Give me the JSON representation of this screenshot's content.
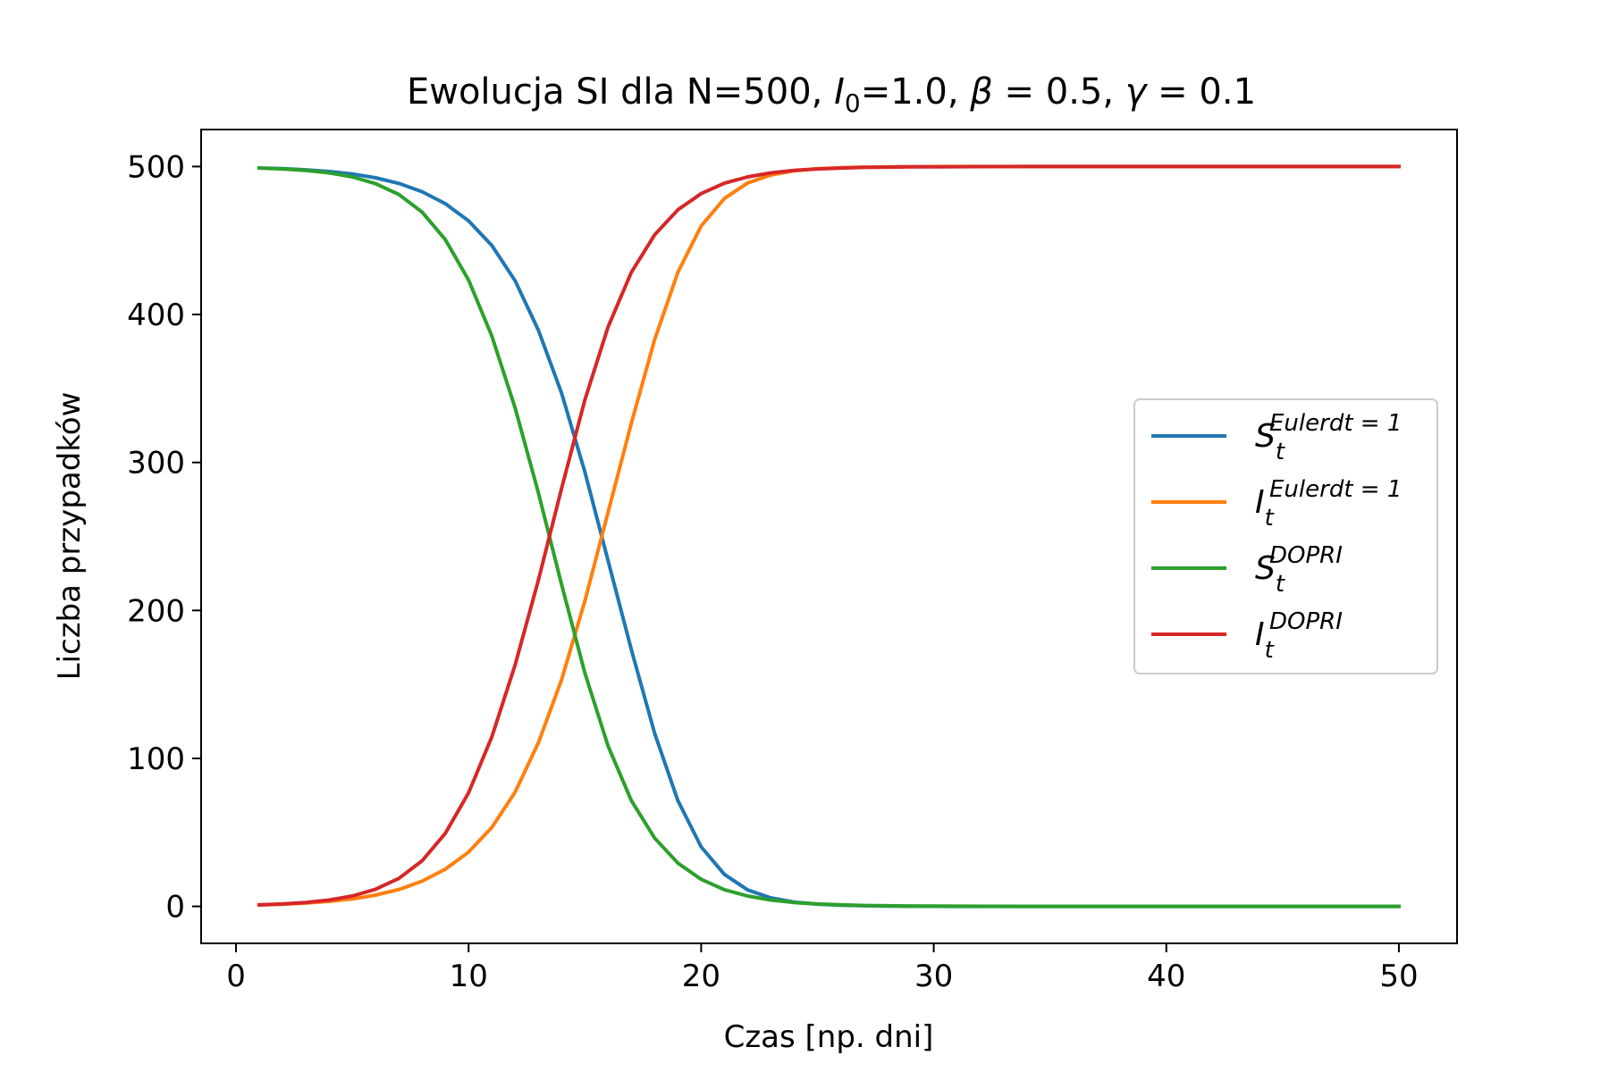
{
  "chart_data": {
    "type": "line",
    "title": {
      "prefix": "Ewolucja SI dla N=500, ",
      "i0_var": "I",
      "i0_sub": "0",
      "i0_value": "=1.0, ",
      "beta_sym": "β",
      "beta_value": " = 0.5, ",
      "gamma_sym": "γ",
      "gamma_value": " = 0.1"
    },
    "xlabel": "Czas [np. dni]",
    "ylabel": "Liczba przypadków",
    "xlim": [
      -1.5,
      52.5
    ],
    "ylim": [
      -25,
      525
    ],
    "xticks": [
      0,
      10,
      20,
      30,
      40,
      50
    ],
    "yticks": [
      0,
      100,
      200,
      300,
      400,
      500
    ],
    "grid": false,
    "legend_position": "center-right",
    "series": [
      {
        "name": "S_t^{Eulerdt=1}",
        "label_main": "S",
        "label_sub": "t",
        "label_sup": "Eulerdt = 1",
        "color": "#1f77b4",
        "x": [
          1,
          2,
          3,
          4,
          5,
          6,
          7,
          8,
          9,
          10,
          11,
          12,
          13,
          14,
          15,
          16,
          17,
          18,
          19,
          20,
          21,
          22,
          23,
          24,
          25,
          26,
          27,
          28,
          29,
          30,
          31,
          32,
          33,
          34,
          35,
          36,
          37,
          38,
          39,
          40,
          41,
          42,
          43,
          44,
          45,
          46,
          47,
          48,
          49,
          50
        ],
        "y": [
          499.0,
          498.6,
          497.8,
          496.6,
          495.0,
          492.4,
          488.6,
          483.0,
          474.9,
          463.3,
          446.7,
          422.8,
          389.4,
          346.8,
          293.6,
          233.5,
          173.5,
          116.9,
          71.4,
          40.2,
          21.6,
          11.1,
          5.7,
          2.9,
          1.5,
          0.8,
          0.4,
          0.2,
          0.1,
          0.05,
          0.02,
          0.01,
          0,
          0,
          0,
          0,
          0,
          0,
          0,
          0,
          0,
          0,
          0,
          0,
          0,
          0,
          0,
          0,
          0,
          0
        ]
      },
      {
        "name": "I_t^{Eulerdt=1}",
        "label_main": "I",
        "label_sub": "t",
        "label_sup": "Eulerdt = 1",
        "color": "#ff7f0e",
        "x": [
          1,
          2,
          3,
          4,
          5,
          6,
          7,
          8,
          9,
          10,
          11,
          12,
          13,
          14,
          15,
          16,
          17,
          18,
          19,
          20,
          21,
          22,
          23,
          24,
          25,
          26,
          27,
          28,
          29,
          30,
          31,
          32,
          33,
          34,
          35,
          36,
          37,
          38,
          39,
          40,
          41,
          42,
          43,
          44,
          45,
          46,
          47,
          48,
          49,
          50
        ],
        "y": [
          1.0,
          1.4,
          2.2,
          3.4,
          5.0,
          7.6,
          11.4,
          17.0,
          25.1,
          36.7,
          53.3,
          77.2,
          110.6,
          153.2,
          206.4,
          266.5,
          326.5,
          383.1,
          428.6,
          459.8,
          478.4,
          488.9,
          494.3,
          497.1,
          498.5,
          499.2,
          499.6,
          499.8,
          499.9,
          499.95,
          499.98,
          499.99,
          500,
          500,
          500,
          500,
          500,
          500,
          500,
          500,
          500,
          500,
          500,
          500,
          500,
          500,
          500,
          500,
          500,
          500
        ]
      },
      {
        "name": "S_t^{DOPRI}",
        "label_main": "S",
        "label_sub": "t",
        "label_sup": "DOPRI",
        "color": "#2ca02c",
        "x": [
          1,
          2,
          3,
          4,
          5,
          6,
          7,
          8,
          9,
          10,
          11,
          12,
          13,
          14,
          15,
          16,
          17,
          18,
          19,
          20,
          21,
          22,
          23,
          24,
          25,
          26,
          27,
          28,
          29,
          30,
          31,
          32,
          33,
          34,
          35,
          36,
          37,
          38,
          39,
          40,
          41,
          42,
          43,
          44,
          45,
          46,
          47,
          48,
          49,
          50
        ],
        "y": [
          499.0,
          498.4,
          497.4,
          495.7,
          493.0,
          488.4,
          481.1,
          469.2,
          450.6,
          423.3,
          385.5,
          336.8,
          279.5,
          217.4,
          157.7,
          108.3,
          71.5,
          46.1,
          29.2,
          18.3,
          11.3,
          7.0,
          4.3,
          2.6,
          1.6,
          1.0,
          0.6,
          0.4,
          0.2,
          0.15,
          0.09,
          0.05,
          0.03,
          0.02,
          0.01,
          0,
          0,
          0,
          0,
          0,
          0,
          0,
          0,
          0,
          0,
          0,
          0,
          0,
          0,
          0
        ]
      },
      {
        "name": "I_t^{DOPRI}",
        "label_main": "I",
        "label_sub": "t",
        "label_sup": "DOPRI",
        "color": "#d62728",
        "x": [
          1,
          2,
          3,
          4,
          5,
          6,
          7,
          8,
          9,
          10,
          11,
          12,
          13,
          14,
          15,
          16,
          17,
          18,
          19,
          20,
          21,
          22,
          23,
          24,
          25,
          26,
          27,
          28,
          29,
          30,
          31,
          32,
          33,
          34,
          35,
          36,
          37,
          38,
          39,
          40,
          41,
          42,
          43,
          44,
          45,
          46,
          47,
          48,
          49,
          50
        ],
        "y": [
          1.0,
          1.6,
          2.6,
          4.3,
          7.0,
          11.6,
          18.9,
          30.8,
          49.4,
          76.7,
          114.5,
          163.2,
          220.5,
          282.6,
          342.3,
          391.7,
          428.5,
          453.9,
          470.8,
          481.7,
          488.7,
          493.0,
          495.7,
          497.4,
          498.4,
          499.0,
          499.4,
          499.6,
          499.8,
          499.85,
          499.91,
          499.95,
          499.97,
          499.98,
          499.99,
          500,
          500,
          500,
          500,
          500,
          500,
          500,
          500,
          500,
          500,
          500,
          500,
          500,
          500,
          500
        ]
      }
    ]
  }
}
